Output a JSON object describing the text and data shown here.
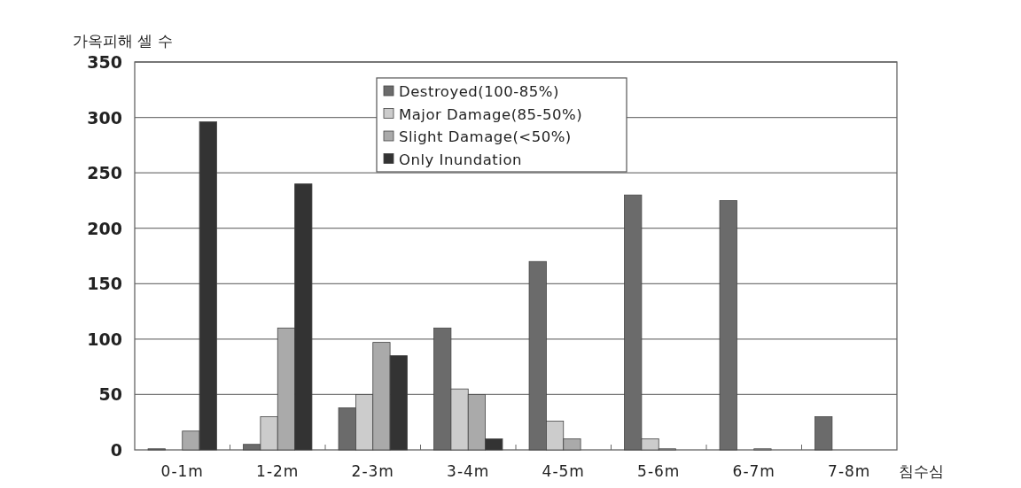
{
  "chart_data": {
    "type": "bar",
    "ylabel": "가옥피해 셀 수",
    "xlabel": "침수심",
    "categories": [
      "0-1m",
      "1-2m",
      "2-3m",
      "3-4m",
      "4-5m",
      "5-6m",
      "6-7m",
      "7-8m"
    ],
    "series": [
      {
        "name": "Destroyed(100-85%)",
        "color": "#6b6b6b",
        "values": [
          1,
          5,
          38,
          110,
          170,
          230,
          225,
          30
        ]
      },
      {
        "name": "Major Damage(85-50%)",
        "color": "#cccccc",
        "values": [
          0,
          30,
          50,
          55,
          26,
          10,
          0,
          0
        ]
      },
      {
        "name": "Slight Damage(<50%)",
        "color": "#aaaaaa",
        "values": [
          17,
          110,
          97,
          50,
          10,
          1,
          1,
          0
        ]
      },
      {
        "name": "Only Inundation",
        "color": "#333333",
        "values": [
          296,
          240,
          85,
          10,
          0,
          0,
          0,
          0
        ]
      }
    ],
    "ylim": [
      0,
      350
    ],
    "yticks": [
      0,
      50,
      100,
      150,
      200,
      250,
      300,
      350
    ],
    "grid": "y",
    "legend": "top"
  }
}
